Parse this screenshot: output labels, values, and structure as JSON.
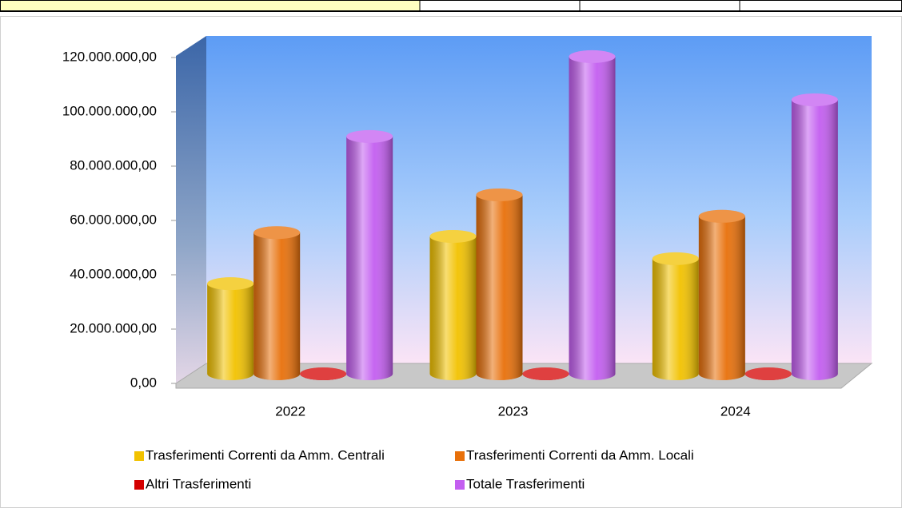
{
  "chart_data": {
    "type": "bar3d",
    "categories": [
      "2022",
      "2023",
      "2024"
    ],
    "series": [
      {
        "name": "Trasferimenti Correnti da Amm. Centrali",
        "color": "#f2c200",
        "values": [
          33200000,
          50600000,
          42400000
        ]
      },
      {
        "name": "Trasferimenti Correnti da Amm. Locali",
        "color": "#e8700a",
        "values": [
          52000000,
          65900000,
          58000000
        ]
      },
      {
        "name": "Altri Trasferimenti",
        "color": "#d40000",
        "values": [
          0,
          0,
          0
        ]
      },
      {
        "name": "Totale Trasferimenti",
        "color": "#c35ef0",
        "values": [
          87400000,
          116800000,
          100900000
        ]
      }
    ],
    "ylim": [
      0,
      120000000
    ],
    "yticks": [
      {
        "value": 0,
        "label": "0,00"
      },
      {
        "value": 20000000,
        "label": "20.000.000,00"
      },
      {
        "value": 40000000,
        "label": "40.000.000,00"
      },
      {
        "value": 60000000,
        "label": "60.000.000,00"
      },
      {
        "value": 80000000,
        "label": "80.000.000,00"
      },
      {
        "value": 100000000,
        "label": "100.000.000,00"
      },
      {
        "value": 120000000,
        "label": "120.000.000,00"
      }
    ]
  }
}
